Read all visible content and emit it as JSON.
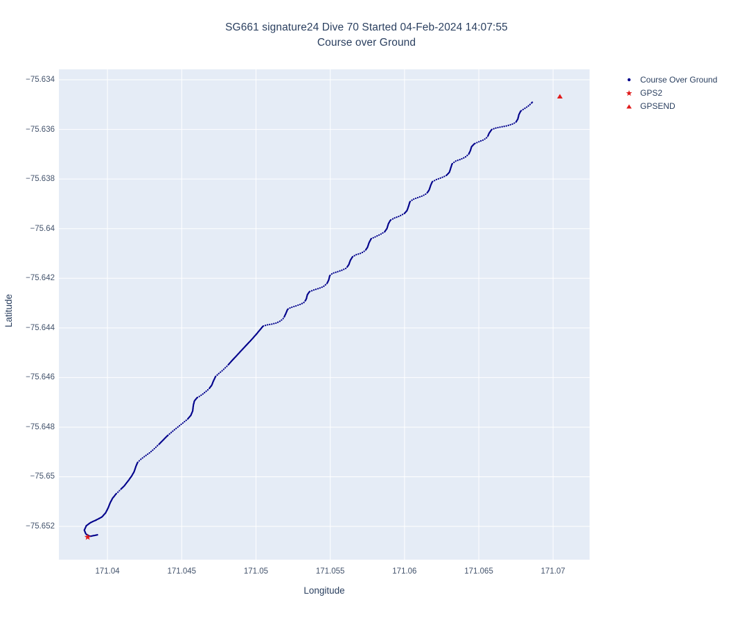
{
  "figure": {
    "title_line1": "SG661 signature24 Dive 70 Started 04-Feb-2024 14:07:55",
    "title_line2": "Course over Ground",
    "colors": {
      "plot_background": "#e5ecf6",
      "grid": "#ffffff",
      "track": "#00008b",
      "marker_red": "#e01b1b",
      "title_text": "#2a3f5f",
      "tick_text": "#42526b"
    }
  },
  "legend": {
    "items": [
      {
        "label": "Course Over Ground",
        "marker": "dot",
        "color": "#00008b"
      },
      {
        "label": "GPS2",
        "marker": "star",
        "color": "#e01b1b"
      },
      {
        "label": "GPSEND",
        "marker": "triangle-up",
        "color": "#e01b1b"
      }
    ]
  },
  "chart_data": {
    "type": "scatter",
    "title": "SG661 signature24 Dive 70 Started 04-Feb-2024 14:07:55",
    "subtitle": "Course over Ground",
    "xlabel": "Longitude",
    "ylabel": "Latitude",
    "xlim": [
      171.03673,
      171.07246
    ],
    "ylim": [
      -75.65334,
      -75.63358
    ],
    "grid": true,
    "legend_position": "top-right-outside",
    "x_ticks": [
      171.04,
      171.045,
      171.05,
      171.055,
      171.06,
      171.065,
      171.07
    ],
    "x_tick_labels": [
      "171.04",
      "171.045",
      "171.05",
      "171.055",
      "171.06",
      "171.065",
      "171.07"
    ],
    "y_ticks": [
      -75.634,
      -75.636,
      -75.638,
      -75.64,
      -75.642,
      -75.644,
      -75.646,
      -75.648,
      -75.65,
      -75.652
    ],
    "y_tick_labels": [
      "−75.634",
      "−75.636",
      "−75.638",
      "−75.64",
      "−75.642",
      "−75.644",
      "−75.646",
      "−75.648",
      "−75.65",
      "−75.652"
    ],
    "series": [
      {
        "name": "Course Over Ground",
        "marker": "dot",
        "color": "#00008b",
        "points": [
          [
            171.03932,
            -75.65234
          ],
          [
            171.03883,
            -75.6524
          ],
          [
            171.03855,
            -75.65231
          ],
          [
            171.03844,
            -75.65215
          ],
          [
            171.03858,
            -75.65197
          ],
          [
            171.03888,
            -75.65184
          ],
          [
            171.03925,
            -75.65174
          ],
          [
            171.03963,
            -75.65162
          ],
          [
            171.03988,
            -75.65145
          ],
          [
            171.04005,
            -75.65125
          ],
          [
            171.04019,
            -75.65104
          ],
          [
            171.04035,
            -75.65086
          ],
          [
            171.04058,
            -75.65069
          ],
          [
            171.04086,
            -75.65053
          ],
          [
            171.04114,
            -75.65036
          ],
          [
            171.0414,
            -75.65016
          ],
          [
            171.04163,
            -75.64997
          ],
          [
            171.0418,
            -75.64979
          ],
          [
            171.04191,
            -75.64959
          ],
          [
            171.04203,
            -75.64942
          ],
          [
            171.04224,
            -75.6493
          ],
          [
            171.04254,
            -75.64916
          ],
          [
            171.04287,
            -75.64902
          ],
          [
            171.04317,
            -75.64886
          ],
          [
            171.04345,
            -75.6487
          ],
          [
            171.04373,
            -75.64853
          ],
          [
            171.04403,
            -75.64835
          ],
          [
            171.04436,
            -75.64818
          ],
          [
            171.04471,
            -75.64801
          ],
          [
            171.04506,
            -75.64784
          ],
          [
            171.04539,
            -75.64768
          ],
          [
            171.04562,
            -75.64752
          ],
          [
            171.04574,
            -75.64734
          ],
          [
            171.04578,
            -75.64713
          ],
          [
            171.04585,
            -75.64695
          ],
          [
            171.04602,
            -75.64682
          ],
          [
            171.04627,
            -75.64673
          ],
          [
            171.04658,
            -75.64659
          ],
          [
            171.04683,
            -75.64646
          ],
          [
            171.04702,
            -75.64631
          ],
          [
            171.04714,
            -75.64613
          ],
          [
            171.04728,
            -75.64596
          ],
          [
            171.04751,
            -75.64583
          ],
          [
            171.04779,
            -75.64569
          ],
          [
            171.04807,
            -75.64553
          ],
          [
            171.04835,
            -75.64534
          ],
          [
            171.04863,
            -75.64516
          ],
          [
            171.04891,
            -75.64498
          ],
          [
            171.04919,
            -75.6448
          ],
          [
            171.04947,
            -75.64462
          ],
          [
            171.04975,
            -75.64444
          ],
          [
            171.05003,
            -75.64425
          ],
          [
            171.05028,
            -75.64407
          ],
          [
            171.05047,
            -75.64393
          ],
          [
            171.05073,
            -75.64388
          ],
          [
            171.05105,
            -75.64385
          ],
          [
            171.05138,
            -75.6438
          ],
          [
            171.05166,
            -75.64372
          ],
          [
            171.05187,
            -75.6436
          ],
          [
            171.05201,
            -75.64342
          ],
          [
            171.05213,
            -75.64325
          ],
          [
            171.05234,
            -75.64318
          ],
          [
            171.05266,
            -75.64312
          ],
          [
            171.05299,
            -75.64305
          ],
          [
            171.05325,
            -75.64297
          ],
          [
            171.05339,
            -75.64283
          ],
          [
            171.05346,
            -75.64266
          ],
          [
            171.0536,
            -75.64254
          ],
          [
            171.0539,
            -75.64247
          ],
          [
            171.05423,
            -75.64241
          ],
          [
            171.05455,
            -75.64233
          ],
          [
            171.05478,
            -75.64221
          ],
          [
            171.0549,
            -75.64206
          ],
          [
            171.05497,
            -75.64189
          ],
          [
            171.05516,
            -75.6418
          ],
          [
            171.05548,
            -75.64174
          ],
          [
            171.05581,
            -75.64167
          ],
          [
            171.05609,
            -75.64159
          ],
          [
            171.05625,
            -75.64145
          ],
          [
            171.05635,
            -75.64128
          ],
          [
            171.05649,
            -75.64114
          ],
          [
            171.05674,
            -75.64105
          ],
          [
            171.05707,
            -75.64099
          ],
          [
            171.05735,
            -75.64089
          ],
          [
            171.05751,
            -75.64075
          ],
          [
            171.05761,
            -75.64057
          ],
          [
            171.05775,
            -75.64041
          ],
          [
            171.05803,
            -75.64033
          ],
          [
            171.05835,
            -75.64024
          ],
          [
            171.05866,
            -75.64013
          ],
          [
            171.05882,
            -75.63999
          ],
          [
            171.05891,
            -75.63981
          ],
          [
            171.05905,
            -75.63966
          ],
          [
            171.05933,
            -75.63957
          ],
          [
            171.05968,
            -75.63949
          ],
          [
            171.05999,
            -75.63939
          ],
          [
            171.06017,
            -75.63927
          ],
          [
            171.06027,
            -75.6391
          ],
          [
            171.06036,
            -75.63892
          ],
          [
            171.06057,
            -75.63882
          ],
          [
            171.06089,
            -75.63875
          ],
          [
            171.06122,
            -75.63868
          ],
          [
            171.0615,
            -75.63858
          ],
          [
            171.06166,
            -75.63844
          ],
          [
            171.06176,
            -75.63826
          ],
          [
            171.06187,
            -75.63811
          ],
          [
            171.06215,
            -75.63802
          ],
          [
            171.06248,
            -75.63795
          ],
          [
            171.06281,
            -75.63786
          ],
          [
            171.06302,
            -75.63773
          ],
          [
            171.06311,
            -75.63756
          ],
          [
            171.0632,
            -75.63739
          ],
          [
            171.06344,
            -75.63728
          ],
          [
            171.06376,
            -75.63721
          ],
          [
            171.06409,
            -75.63712
          ],
          [
            171.06432,
            -75.637
          ],
          [
            171.06444,
            -75.63685
          ],
          [
            171.06451,
            -75.6367
          ],
          [
            171.0647,
            -75.63658
          ],
          [
            171.065,
            -75.6365
          ],
          [
            171.06533,
            -75.63642
          ],
          [
            171.06558,
            -75.63631
          ],
          [
            171.0657,
            -75.63615
          ],
          [
            171.06586,
            -75.63601
          ],
          [
            171.06617,
            -75.63594
          ],
          [
            171.06652,
            -75.6359
          ],
          [
            171.06687,
            -75.63586
          ],
          [
            171.06721,
            -75.6358
          ],
          [
            171.06749,
            -75.63572
          ],
          [
            171.06763,
            -75.63558
          ],
          [
            171.0677,
            -75.63541
          ],
          [
            171.06782,
            -75.63526
          ],
          [
            171.06808,
            -75.63516
          ],
          [
            171.06833,
            -75.63506
          ],
          [
            171.06852,
            -75.63496
          ],
          [
            171.06864,
            -75.63488
          ]
        ]
      },
      {
        "name": "GPS2",
        "marker": "star",
        "color": "#e01b1b",
        "points": [
          [
            171.03867,
            -75.65243
          ]
        ]
      },
      {
        "name": "GPSEND",
        "marker": "triangle-up",
        "color": "#e01b1b",
        "points": [
          [
            171.07046,
            -75.63467
          ]
        ]
      }
    ]
  }
}
